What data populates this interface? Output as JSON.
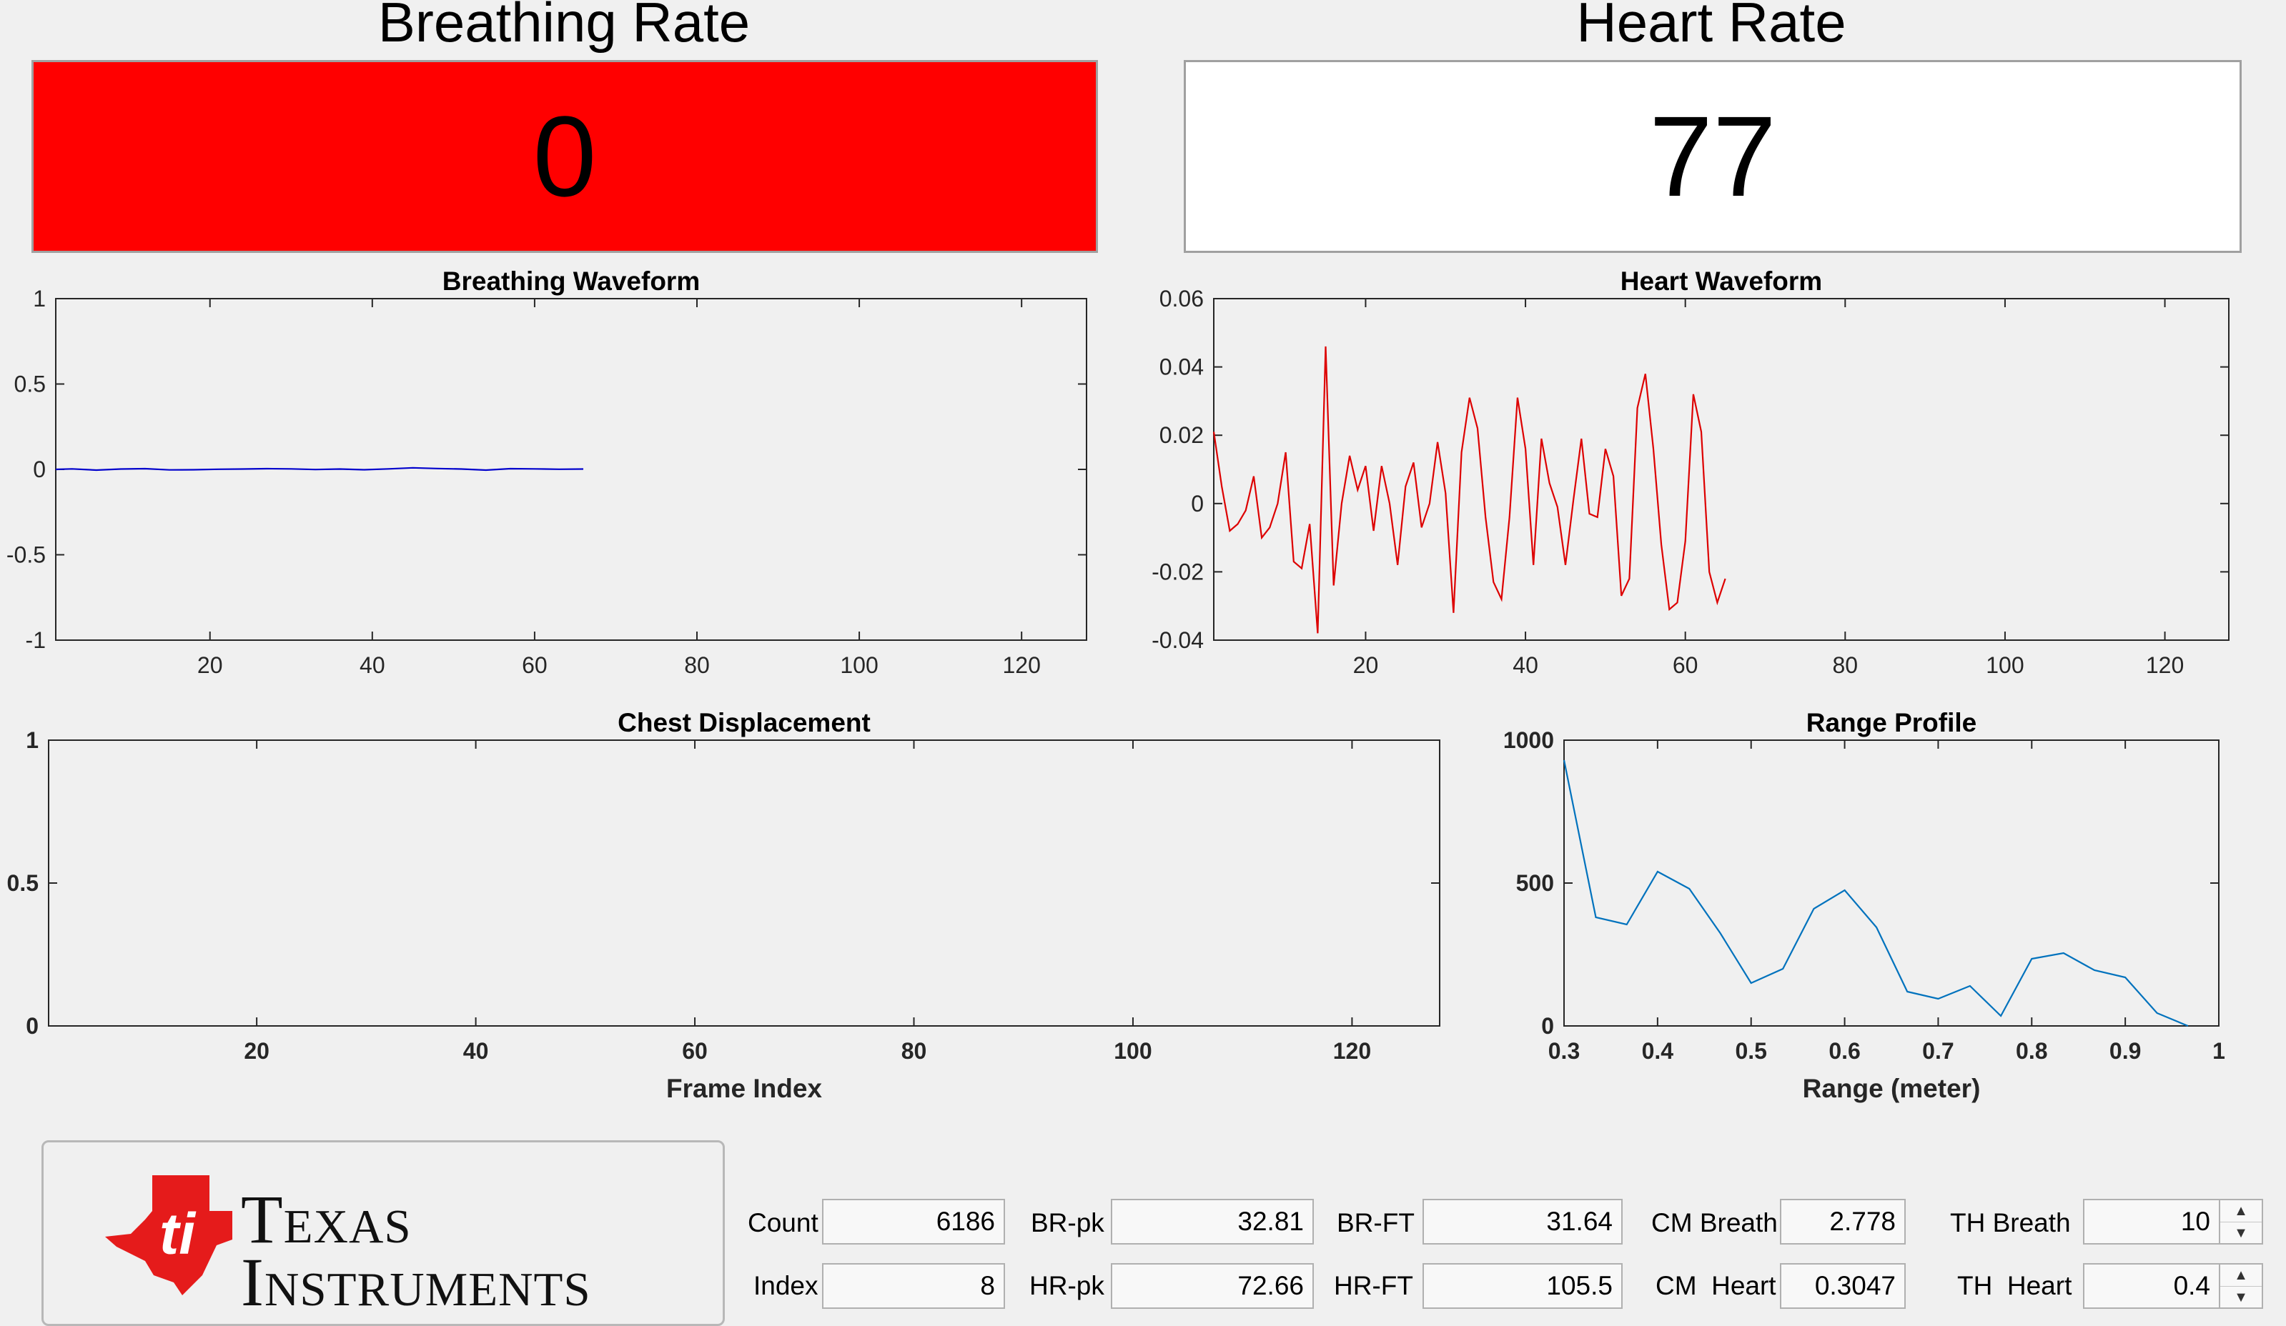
{
  "breathing": {
    "title": "Breathing Rate",
    "value": "0",
    "bg": "#ff0000"
  },
  "heart": {
    "title": "Heart Rate",
    "value": "77",
    "bg": "#ffffff"
  },
  "charts": [
    {
      "id": "breathing-waveform",
      "title": "Breathing Waveform",
      "type": "line",
      "color": "#0000cc",
      "xlim": [
        1,
        128
      ],
      "ylim": [
        -1,
        1
      ],
      "xticks": [
        20,
        40,
        60,
        80,
        100,
        120
      ],
      "yticks": [
        -1,
        -0.5,
        0,
        0.5,
        1
      ],
      "xticklabels": [
        "20",
        "40",
        "60",
        "80",
        "100",
        "120"
      ],
      "yticklabels": [
        "-1",
        "-0.5",
        "0",
        "0.5",
        "1"
      ],
      "xlabel": "",
      "ylabel": "",
      "x": [
        1,
        3,
        6,
        9,
        12,
        15,
        18,
        21,
        24,
        27,
        30,
        33,
        36,
        39,
        42,
        45,
        48,
        51,
        54,
        57,
        60,
        63,
        66
      ],
      "y": [
        0,
        0.003,
        -0.004,
        0.002,
        0.004,
        -0.003,
        -0.002,
        0.001,
        0.002,
        0.004,
        0.003,
        -0.001,
        0.002,
        -0.002,
        0.003,
        0.009,
        0.005,
        0.002,
        -0.004,
        0.004,
        0.003,
        0.001,
        0.002
      ]
    },
    {
      "id": "heart-waveform",
      "title": "Heart Waveform",
      "type": "line",
      "color": "#dd0000",
      "xlim": [
        1,
        128
      ],
      "ylim": [
        -0.04,
        0.06
      ],
      "xticks": [
        20,
        40,
        60,
        80,
        100,
        120
      ],
      "yticks": [
        -0.04,
        -0.02,
        0,
        0.02,
        0.04,
        0.06
      ],
      "xticklabels": [
        "20",
        "40",
        "60",
        "80",
        "100",
        "120"
      ],
      "yticklabels": [
        "-0.04",
        "-0.02",
        "0",
        "0.02",
        "0.04",
        "0.06"
      ],
      "xlabel": "",
      "ylabel": "",
      "x": [
        1,
        2,
        3,
        4,
        5,
        6,
        7,
        8,
        9,
        10,
        11,
        12,
        13,
        14,
        15,
        16,
        17,
        18,
        19,
        20,
        21,
        22,
        23,
        24,
        25,
        26,
        27,
        28,
        29,
        30,
        31,
        32,
        33,
        34,
        35,
        36,
        37,
        38,
        39,
        40,
        41,
        42,
        43,
        44,
        45,
        46,
        47,
        48,
        49,
        50,
        51,
        52,
        53,
        54,
        55,
        56,
        57,
        58,
        59,
        60,
        61,
        62,
        63,
        64,
        65
      ],
      "y": [
        0.021,
        0.005,
        -0.008,
        -0.006,
        -0.002,
        0.008,
        -0.01,
        -0.007,
        0,
        0.015,
        -0.017,
        -0.019,
        -0.006,
        -0.038,
        0.046,
        -0.024,
        0,
        0.014,
        0.004,
        0.011,
        -0.008,
        0.011,
        0,
        -0.018,
        0.005,
        0.012,
        -0.007,
        0,
        0.018,
        0.003,
        -0.032,
        0.015,
        0.031,
        0.022,
        -0.004,
        -0.023,
        -0.028,
        -0.004,
        0.031,
        0.016,
        -0.018,
        0.019,
        0.006,
        -0.001,
        -0.018,
        0.001,
        0.019,
        -0.003,
        -0.004,
        0.016,
        0.008,
        -0.027,
        -0.022,
        0.028,
        0.038,
        0.016,
        -0.012,
        -0.031,
        -0.029,
        -0.011,
        0.032,
        0.021,
        -0.02,
        -0.029,
        -0.022
      ]
    },
    {
      "id": "chest-displacement",
      "title": "Chest Displacement",
      "type": "line",
      "color": "#0072bd",
      "xlim": [
        1,
        128
      ],
      "ylim": [
        0,
        1
      ],
      "xticks": [
        20,
        40,
        60,
        80,
        100,
        120
      ],
      "yticks": [
        0,
        0.5,
        1
      ],
      "xticklabels": [
        "20",
        "40",
        "60",
        "80",
        "100",
        "120"
      ],
      "yticklabels": [
        "0",
        "0.5",
        "1"
      ],
      "xlabel": "Frame Index",
      "ylabel": "",
      "x": [],
      "y": []
    },
    {
      "id": "range-profile",
      "title": "Range Profile",
      "type": "line",
      "color": "#0072bd",
      "xlim": [
        0.3,
        1
      ],
      "ylim": [
        0,
        1000
      ],
      "xticks": [
        0.3,
        0.4,
        0.5,
        0.6,
        0.7,
        0.8,
        0.9,
        1
      ],
      "yticks": [
        0,
        500,
        1000
      ],
      "xticklabels": [
        "0.3",
        "0.4",
        "0.5",
        "0.6",
        "0.7",
        "0.8",
        "0.9",
        "1"
      ],
      "yticklabels": [
        "0",
        "500",
        "1000"
      ],
      "xlabel": "Range (meter)",
      "ylabel": "",
      "x": [
        0.3,
        0.334,
        0.367,
        0.4,
        0.434,
        0.467,
        0.5,
        0.534,
        0.567,
        0.6,
        0.634,
        0.667,
        0.7,
        0.734,
        0.767,
        0.8,
        0.834,
        0.867,
        0.9,
        0.934,
        0.967
      ],
      "y": [
        930,
        380,
        355,
        540,
        480,
        325,
        150,
        200,
        410,
        475,
        345,
        120,
        95,
        140,
        35,
        235,
        255,
        195,
        170,
        45,
        0
      ]
    }
  ],
  "logo": {
    "line1": "Texas",
    "line2": "Instruments"
  },
  "fields": {
    "count_label": "Count",
    "count_value": "6186",
    "index_label": "Index",
    "index_value": "8",
    "brpk_label": "BR-pk",
    "brpk_value": "32.81",
    "hrpk_label": "HR-pk",
    "hrpk_value": "72.66",
    "brft_label": "BR-FT",
    "brft_value": "31.64",
    "hrft_label": "HR-FT",
    "hrft_value": "105.5",
    "cmbreath_label": "CM Breath",
    "cmbreath_value": "2.778",
    "cmheart_label": "CM  Heart",
    "cmheart_value": "0.3047",
    "thbreath_label": "TH Breath",
    "thbreath_value": "10",
    "thheart_label": "TH  Heart",
    "thheart_value": "0.4"
  }
}
